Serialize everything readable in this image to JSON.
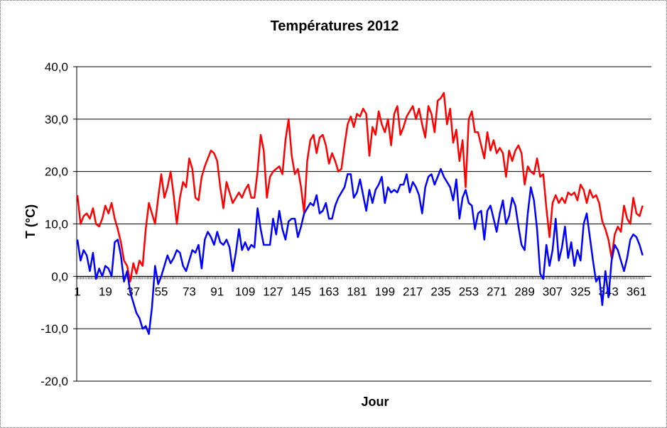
{
  "chart_data": {
    "type": "line",
    "title": "Températures 2012",
    "xlabel": "Jour",
    "ylabel": "T (°C)",
    "xlim": [
      1,
      366
    ],
    "ylim": [
      -20,
      40
    ],
    "y_ticks": [
      "40,0",
      "30,0",
      "20,0",
      "10,0",
      "0,0",
      "-10,0",
      "-20,0"
    ],
    "y_tick_values": [
      40,
      30,
      20,
      10,
      0,
      -10,
      -20
    ],
    "x_ticks": [
      "1",
      "19",
      "37",
      "55",
      "73",
      "91",
      "109",
      "127",
      "145",
      "163",
      "181",
      "199",
      "217",
      "235",
      "253",
      "271",
      "289",
      "307",
      "325",
      "343",
      "361"
    ],
    "x_tick_values": [
      1,
      19,
      37,
      55,
      73,
      91,
      109,
      127,
      145,
      163,
      181,
      199,
      217,
      235,
      253,
      271,
      289,
      307,
      325,
      343,
      361
    ],
    "grid": true,
    "legend": "none",
    "series": [
      {
        "color": "#ff0000",
        "x": [
          1,
          3,
          5,
          7,
          9,
          11,
          13,
          15,
          17,
          19,
          21,
          23,
          25,
          27,
          29,
          31,
          33,
          35,
          37,
          39,
          41,
          43,
          45,
          47,
          49,
          51,
          53,
          55,
          57,
          59,
          61,
          63,
          65,
          67,
          69,
          71,
          73,
          75,
          77,
          79,
          81,
          83,
          85,
          87,
          89,
          91,
          93,
          95,
          97,
          99,
          101,
          103,
          105,
          107,
          109,
          111,
          113,
          115,
          117,
          119,
          121,
          123,
          125,
          127,
          129,
          131,
          133,
          135,
          137,
          139,
          141,
          143,
          145,
          147,
          149,
          151,
          153,
          155,
          157,
          159,
          161,
          163,
          165,
          167,
          169,
          171,
          173,
          175,
          177,
          179,
          181,
          183,
          185,
          187,
          189,
          191,
          193,
          195,
          197,
          199,
          201,
          203,
          205,
          207,
          209,
          211,
          213,
          215,
          217,
          219,
          221,
          223,
          225,
          227,
          229,
          231,
          233,
          235,
          237,
          239,
          241,
          243,
          245,
          247,
          249,
          251,
          253,
          255,
          257,
          259,
          261,
          263,
          265,
          267,
          269,
          271,
          273,
          275,
          277,
          279,
          281,
          283,
          285,
          287,
          289,
          291,
          293,
          295,
          297,
          299,
          301,
          303,
          305,
          307,
          309,
          311,
          313,
          315,
          317,
          319,
          321,
          323,
          325,
          327,
          329,
          331,
          333,
          335,
          337,
          339,
          341,
          343,
          345,
          347,
          349,
          351,
          353,
          355,
          357,
          359,
          361,
          363,
          365
        ],
        "values": [
          15.5,
          10.0,
          11.5,
          12.0,
          11.0,
          13.0,
          10.0,
          9.5,
          11.0,
          13.5,
          12.0,
          14.0,
          11.0,
          9.0,
          6.5,
          3.0,
          2.0,
          -1.0,
          2.5,
          0.5,
          3.0,
          2.0,
          9.0,
          14.0,
          12.0,
          10.0,
          15.0,
          19.5,
          15.0,
          17.0,
          20.0,
          15.5,
          10.0,
          15.0,
          18.0,
          17.0,
          22.5,
          20.5,
          15.0,
          14.5,
          19.0,
          21.0,
          22.5,
          24.0,
          23.5,
          22.0,
          17.0,
          13.0,
          18.0,
          16.0,
          14.0,
          15.0,
          16.0,
          15.0,
          16.5,
          17.5,
          15.0,
          15.0,
          20.0,
          27.0,
          24.0,
          15.0,
          19.0,
          20.0,
          20.5,
          21.0,
          19.5,
          26.0,
          30.0,
          23.0,
          19.5,
          20.5,
          17.0,
          12.0,
          22.0,
          26.0,
          27.0,
          23.5,
          26.5,
          27.0,
          25.0,
          21.5,
          23.5,
          22.0,
          20.0,
          20.5,
          25.0,
          29.0,
          30.5,
          28.5,
          31.0,
          30.5,
          32.0,
          31.0,
          23.0,
          28.5,
          27.0,
          31.5,
          29.0,
          27.5,
          30.0,
          25.0,
          31.0,
          32.5,
          27.0,
          28.5,
          30.5,
          31.5,
          32.5,
          30.0,
          32.0,
          29.0,
          26.5,
          32.5,
          31.0,
          27.5,
          33.5,
          34.0,
          35.0,
          29.0,
          32.0,
          25.5,
          28.0,
          22.0,
          26.0,
          17.0,
          30.0,
          31.5,
          27.5,
          27.5,
          25.0,
          22.5,
          27.5,
          24.0,
          26.0,
          23.5,
          24.5,
          23.5,
          19.0,
          24.0,
          22.0,
          24.0,
          25.0,
          23.5,
          17.5,
          21.0,
          20.0,
          19.5,
          22.5,
          19.0,
          19.5,
          13.0,
          7.5,
          14.0,
          15.5,
          14.0,
          15.0,
          14.0,
          16.0,
          15.5,
          16.0,
          14.5,
          17.5,
          16.5,
          14.0,
          16.5,
          15.0,
          15.5,
          14.0,
          10.5,
          9.0,
          7.0,
          3.5,
          8.0,
          9.5,
          8.5,
          13.5,
          11.0,
          10.0,
          15.0,
          12.0,
          11.5,
          13.5
        ]
      },
      {
        "color": "#0000ff",
        "x": [
          1,
          3,
          5,
          7,
          9,
          11,
          13,
          15,
          17,
          19,
          21,
          23,
          25,
          27,
          29,
          31,
          33,
          35,
          37,
          39,
          41,
          43,
          45,
          47,
          49,
          51,
          53,
          55,
          57,
          59,
          61,
          63,
          65,
          67,
          69,
          71,
          73,
          75,
          77,
          79,
          81,
          83,
          85,
          87,
          89,
          91,
          93,
          95,
          97,
          99,
          101,
          103,
          105,
          107,
          109,
          111,
          113,
          115,
          117,
          119,
          121,
          123,
          125,
          127,
          129,
          131,
          133,
          135,
          137,
          139,
          141,
          143,
          145,
          147,
          149,
          151,
          153,
          155,
          157,
          159,
          161,
          163,
          165,
          167,
          169,
          171,
          173,
          175,
          177,
          179,
          181,
          183,
          185,
          187,
          189,
          191,
          193,
          195,
          197,
          199,
          201,
          203,
          205,
          207,
          209,
          211,
          213,
          215,
          217,
          219,
          221,
          223,
          225,
          227,
          229,
          231,
          233,
          235,
          237,
          239,
          241,
          243,
          245,
          247,
          249,
          251,
          253,
          255,
          257,
          259,
          261,
          263,
          265,
          267,
          269,
          271,
          273,
          275,
          277,
          279,
          281,
          283,
          285,
          287,
          289,
          291,
          293,
          295,
          297,
          299,
          301,
          303,
          305,
          307,
          309,
          311,
          313,
          315,
          317,
          319,
          321,
          323,
          325,
          327,
          329,
          331,
          333,
          335,
          337,
          339,
          341,
          343,
          345,
          347,
          349,
          351,
          353,
          355,
          357,
          359,
          361,
          363,
          365
        ],
        "values": [
          7.0,
          3.0,
          5.0,
          4.0,
          1.0,
          4.5,
          -0.5,
          1.5,
          0.0,
          2.0,
          1.5,
          0.0,
          6.5,
          7.0,
          4.0,
          -1.0,
          1.0,
          -3.0,
          -5.0,
          -7.0,
          -8.0,
          -10.0,
          -9.5,
          -11.0,
          -6.0,
          2.0,
          -1.5,
          0.0,
          2.0,
          4.0,
          2.5,
          3.5,
          5.0,
          4.5,
          2.0,
          1.0,
          3.0,
          5.0,
          4.5,
          6.0,
          1.5,
          7.0,
          8.5,
          7.5,
          6.0,
          8.5,
          6.5,
          6.0,
          7.0,
          5.5,
          1.0,
          4.5,
          9.0,
          5.0,
          6.5,
          5.0,
          6.0,
          5.5,
          13.0,
          9.0,
          6.0,
          6.0,
          6.0,
          11.0,
          8.0,
          12.5,
          9.0,
          7.0,
          10.5,
          11.0,
          11.0,
          7.5,
          9.5,
          12.0,
          13.0,
          14.0,
          13.5,
          15.5,
          12.0,
          12.5,
          14.0,
          11.0,
          11.0,
          13.5,
          15.0,
          16.0,
          17.0,
          19.5,
          19.5,
          15.0,
          16.0,
          18.5,
          15.5,
          12.5,
          16.5,
          14.0,
          16.5,
          17.5,
          19.0,
          14.0,
          17.0,
          16.0,
          16.5,
          16.0,
          17.5,
          17.5,
          19.5,
          16.0,
          18.0,
          17.0,
          15.5,
          12.0,
          17.0,
          19.0,
          19.5,
          17.5,
          19.0,
          20.5,
          19.0,
          18.0,
          17.0,
          14.5,
          18.5,
          11.0,
          15.0,
          16.5,
          14.0,
          13.5,
          9.0,
          12.0,
          12.5,
          7.0,
          12.5,
          13.5,
          11.0,
          8.5,
          12.0,
          14.5,
          10.0,
          11.5,
          15.0,
          13.5,
          9.5,
          6.0,
          5.0,
          12.0,
          17.0,
          14.5,
          9.0,
          0.5,
          -0.5,
          6.0,
          2.0,
          5.0,
          11.0,
          3.0,
          5.5,
          9.5,
          3.5,
          6.5,
          2.0,
          5.0,
          3.0,
          10.0,
          12.0,
          7.5,
          3.0,
          -1.0,
          0.0,
          -5.5,
          1.0,
          -4.0,
          3.0,
          6.0,
          5.0,
          3.0,
          1.0,
          3.5,
          7.0,
          8.0,
          7.5,
          6.0,
          4.0
        ]
      }
    ]
  }
}
